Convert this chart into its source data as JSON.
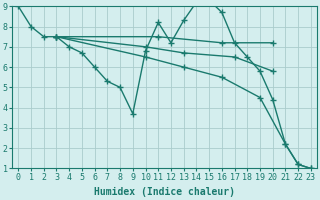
{
  "background_color": "#d4eeee",
  "grid_color": "#aacccc",
  "line_color": "#1a7a6e",
  "marker": "+",
  "markersize": 5,
  "linewidth": 1.0,
  "xlabel": "Humidex (Indice chaleur)",
  "xlabel_fontsize": 7,
  "xlim": [
    -0.5,
    23.5
  ],
  "ylim": [
    1,
    9
  ],
  "xticks": [
    0,
    1,
    2,
    3,
    4,
    5,
    6,
    7,
    8,
    9,
    10,
    11,
    12,
    13,
    14,
    15,
    16,
    17,
    18,
    19,
    20,
    21,
    22,
    23
  ],
  "yticks": [
    1,
    2,
    3,
    4,
    5,
    6,
    7,
    8,
    9
  ],
  "lines": [
    {
      "x": [
        0,
        1,
        2,
        3,
        4,
        5,
        6,
        7,
        8,
        9,
        10,
        11,
        12,
        13,
        14,
        15,
        16,
        17,
        18,
        19,
        20,
        21,
        22,
        23
      ],
      "y": [
        9,
        8,
        7.5,
        7.5,
        7.0,
        6.7,
        6.0,
        5.3,
        5.0,
        3.7,
        6.8,
        8.2,
        7.2,
        8.3,
        9.2,
        9.3,
        8.7,
        7.2,
        6.5,
        5.8,
        4.4,
        2.2,
        1.2,
        1.0
      ]
    },
    {
      "x": [
        3,
        11,
        16,
        20
      ],
      "y": [
        7.5,
        7.5,
        7.2,
        7.2
      ]
    },
    {
      "x": [
        3,
        10,
        13,
        17,
        20
      ],
      "y": [
        7.5,
        7.0,
        6.7,
        6.5,
        5.8
      ]
    },
    {
      "x": [
        3,
        10,
        13,
        16,
        19,
        21,
        22,
        23
      ],
      "y": [
        7.5,
        6.5,
        6.0,
        5.5,
        4.5,
        2.2,
        1.2,
        1.0
      ]
    }
  ]
}
